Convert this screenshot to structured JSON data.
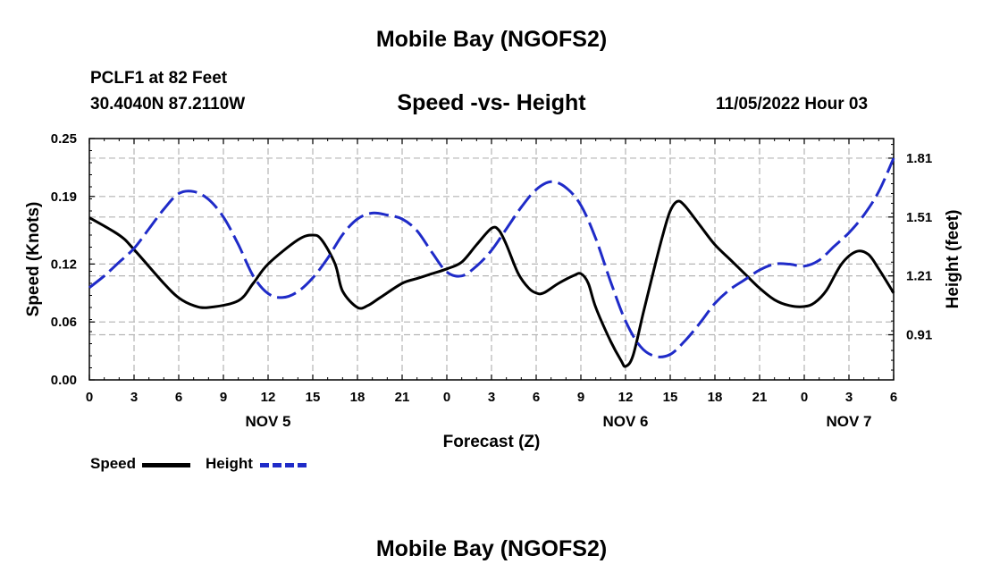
{
  "header": {
    "title": "Mobile Bay (NGOFS2)",
    "station": "PCLF1 at 82 Feet",
    "coords": "30.4040N  87.2110W",
    "subtitle": "Speed -vs- Height",
    "datetime": "11/05/2022 Hour 03"
  },
  "footer": {
    "title": "Mobile Bay (NGOFS2)"
  },
  "chart_data": {
    "type": "line",
    "title": "Speed -vs- Height",
    "xlabel": "Forecast (Z)",
    "x_tick_labels": [
      "0",
      "3",
      "6",
      "9",
      "12",
      "15",
      "18",
      "21",
      "0",
      "3",
      "6",
      "9",
      "12",
      "15",
      "18",
      "21",
      "0",
      "3",
      "6"
    ],
    "x_hours": [
      0,
      3,
      6,
      9,
      12,
      15,
      18,
      21,
      24,
      27,
      30,
      33,
      36,
      39,
      42,
      45,
      48,
      51,
      54
    ],
    "xlim": [
      0,
      54
    ],
    "day_labels": [
      {
        "text": "NOV 5",
        "hour": 12
      },
      {
        "text": "NOV 6",
        "hour": 36
      },
      {
        "text": "NOV 7",
        "hour": 51
      }
    ],
    "y_left": {
      "label": "Speed (Knots)",
      "ticks": [
        0.0,
        0.06,
        0.12,
        0.19,
        0.25
      ],
      "tick_labels": [
        "0.00",
        "0.06",
        "0.12",
        "0.19",
        "0.25"
      ],
      "lim": [
        0,
        0.25
      ]
    },
    "y_right": {
      "label": "Height (feet)",
      "ticks": [
        0.91,
        1.21,
        1.51,
        1.81
      ],
      "tick_labels": [
        "0.91",
        "1.21",
        "1.51",
        "1.81"
      ],
      "lim": [
        0.68,
        1.91
      ]
    },
    "grid": true,
    "legend_position": "bottom-left",
    "series": [
      {
        "name": "Speed",
        "axis": "left",
        "color": "#000000",
        "style": "solid",
        "points": [
          [
            0,
            0.168
          ],
          [
            2,
            0.15
          ],
          [
            3,
            0.135
          ],
          [
            5,
            0.1
          ],
          [
            6,
            0.085
          ],
          [
            7,
            0.077
          ],
          [
            8,
            0.075
          ],
          [
            10,
            0.082
          ],
          [
            11,
            0.1
          ],
          [
            12,
            0.12
          ],
          [
            14,
            0.145
          ],
          [
            15,
            0.15
          ],
          [
            15.6,
            0.145
          ],
          [
            16.5,
            0.12
          ],
          [
            17,
            0.092
          ],
          [
            18,
            0.075
          ],
          [
            18.7,
            0.077
          ],
          [
            19.5,
            0.085
          ],
          [
            21,
            0.1
          ],
          [
            22,
            0.105
          ],
          [
            23,
            0.11
          ],
          [
            24,
            0.115
          ],
          [
            25,
            0.122
          ],
          [
            26,
            0.14
          ],
          [
            27,
            0.157
          ],
          [
            27.5,
            0.155
          ],
          [
            28,
            0.14
          ],
          [
            28.8,
            0.11
          ],
          [
            29.5,
            0.095
          ],
          [
            30,
            0.09
          ],
          [
            30.5,
            0.09
          ],
          [
            31.5,
            0.1
          ],
          [
            32.5,
            0.108
          ],
          [
            33,
            0.11
          ],
          [
            33.5,
            0.1
          ],
          [
            34,
            0.075
          ],
          [
            35,
            0.04
          ],
          [
            35.7,
            0.02
          ],
          [
            36,
            0.014
          ],
          [
            36.5,
            0.025
          ],
          [
            37.2,
            0.07
          ],
          [
            38,
            0.12
          ],
          [
            38.5,
            0.15
          ],
          [
            39,
            0.175
          ],
          [
            39.5,
            0.185
          ],
          [
            40,
            0.18
          ],
          [
            41,
            0.16
          ],
          [
            42,
            0.14
          ],
          [
            43,
            0.125
          ],
          [
            44,
            0.11
          ],
          [
            45,
            0.095
          ],
          [
            46,
            0.083
          ],
          [
            47,
            0.077
          ],
          [
            48,
            0.076
          ],
          [
            48.7,
            0.08
          ],
          [
            49.5,
            0.093
          ],
          [
            50.5,
            0.12
          ],
          [
            51.5,
            0.133
          ],
          [
            52.3,
            0.13
          ],
          [
            53,
            0.115
          ],
          [
            54,
            0.09
          ]
        ]
      },
      {
        "name": "Height",
        "axis": "right",
        "color": "#1f2bc8",
        "style": "dashed",
        "points": [
          [
            0,
            1.15
          ],
          [
            1,
            1.21
          ],
          [
            2,
            1.28
          ],
          [
            3,
            1.35
          ],
          [
            4,
            1.45
          ],
          [
            5,
            1.55
          ],
          [
            6,
            1.63
          ],
          [
            7,
            1.64
          ],
          [
            8,
            1.6
          ],
          [
            9,
            1.51
          ],
          [
            10,
            1.37
          ],
          [
            11,
            1.21
          ],
          [
            12,
            1.12
          ],
          [
            13,
            1.1
          ],
          [
            14,
            1.13
          ],
          [
            15,
            1.2
          ],
          [
            16,
            1.3
          ],
          [
            17,
            1.42
          ],
          [
            18,
            1.5
          ],
          [
            19,
            1.53
          ],
          [
            20,
            1.52
          ],
          [
            21,
            1.5
          ],
          [
            22,
            1.44
          ],
          [
            23,
            1.33
          ],
          [
            24,
            1.23
          ],
          [
            25,
            1.21
          ],
          [
            26,
            1.26
          ],
          [
            27,
            1.34
          ],
          [
            28,
            1.45
          ],
          [
            29,
            1.56
          ],
          [
            30,
            1.65
          ],
          [
            31,
            1.69
          ],
          [
            32,
            1.66
          ],
          [
            33,
            1.57
          ],
          [
            34,
            1.4
          ],
          [
            35,
            1.18
          ],
          [
            36,
            0.98
          ],
          [
            37,
            0.85
          ],
          [
            38,
            0.8
          ],
          [
            39,
            0.81
          ],
          [
            40,
            0.88
          ],
          [
            41,
            0.97
          ],
          [
            42,
            1.07
          ],
          [
            43,
            1.14
          ],
          [
            44,
            1.19
          ],
          [
            45,
            1.24
          ],
          [
            46,
            1.27
          ],
          [
            47,
            1.27
          ],
          [
            48,
            1.26
          ],
          [
            49,
            1.29
          ],
          [
            50,
            1.36
          ],
          [
            51,
            1.43
          ],
          [
            52,
            1.52
          ],
          [
            53,
            1.64
          ],
          [
            54,
            1.81
          ]
        ]
      }
    ]
  }
}
